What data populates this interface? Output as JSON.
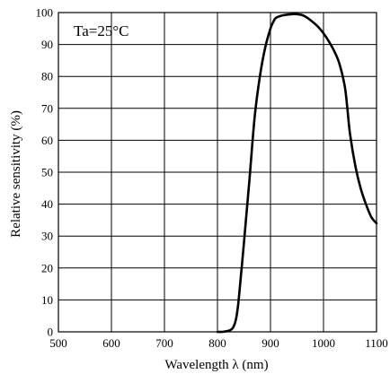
{
  "chart_data": {
    "type": "line",
    "title": "",
    "annotation": "Ta=25°C",
    "xlabel": "Wavelength λ   (nm)",
    "ylabel": "Relative sensitivity (%)",
    "xlim": [
      500,
      1100
    ],
    "ylim": [
      0,
      100
    ],
    "xticks": [
      "500",
      "600",
      "700",
      "800",
      "900",
      "1000",
      "1100"
    ],
    "yticks": [
      "0",
      "10",
      "20",
      "30",
      "40",
      "50",
      "60",
      "70",
      "80",
      "90",
      "100"
    ],
    "grid": true,
    "series": [
      {
        "x": [
          800,
          810,
          820,
          825,
          830,
          835,
          840,
          850,
          860,
          870,
          880,
          890,
          900,
          905,
          910,
          920,
          930,
          940,
          950,
          960,
          970,
          980,
          990,
          1000,
          1010,
          1020,
          1030,
          1040,
          1045,
          1050,
          1060,
          1070,
          1080,
          1090,
          1100
        ],
        "y": [
          0,
          0,
          0.3,
          0.6,
          1.5,
          4,
          10,
          28,
          47,
          67,
          80,
          89,
          95,
          97,
          98.3,
          99,
          99.3,
          99.5,
          99.5,
          99.2,
          98.3,
          97,
          95.5,
          93.5,
          91,
          88,
          84,
          77,
          70,
          62,
          52,
          45,
          40,
          36,
          34
        ]
      }
    ]
  }
}
